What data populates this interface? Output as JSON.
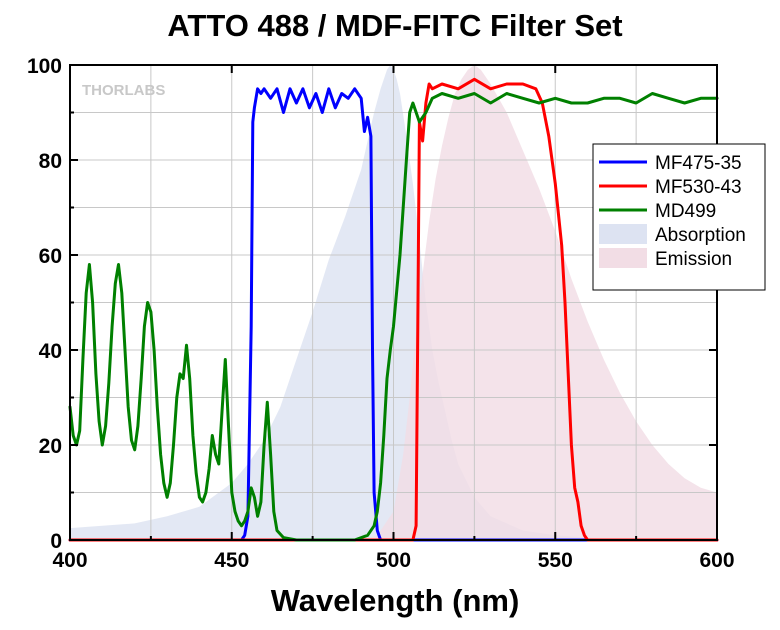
{
  "chart_data": {
    "type": "line",
    "title": "ATTO 488 / MDF-FITC Filter Set",
    "xlabel": "Wavelength (nm)",
    "ylabel": "",
    "xlim": [
      400,
      600
    ],
    "ylim": [
      0,
      100
    ],
    "x_ticks": [
      400,
      450,
      500,
      550,
      600
    ],
    "y_ticks": [
      0,
      20,
      40,
      60,
      80,
      100
    ],
    "grid": true,
    "legend_position": "right",
    "watermark": "THORLABS",
    "series": [
      {
        "name": "MF475-35",
        "color": "#0000ff",
        "style": "line",
        "x": [
          400,
          453,
          454,
          455,
          456,
          456.5,
          457,
          458,
          459,
          460,
          462,
          464,
          466,
          468,
          470,
          472,
          474,
          476,
          478,
          480,
          482,
          484,
          486,
          488,
          490,
          491,
          492,
          493,
          493.5,
          494,
          495,
          496,
          600
        ],
        "y": [
          0,
          0,
          1,
          5,
          45,
          88,
          91,
          95,
          94,
          95,
          93,
          95,
          90,
          95,
          92,
          95,
          91,
          94,
          90,
          95,
          91,
          94,
          93,
          95,
          93,
          86,
          89,
          85,
          40,
          10,
          2,
          0,
          0
        ]
      },
      {
        "name": "MF530-43",
        "color": "#ff0000",
        "style": "line",
        "x": [
          400,
          506,
          507,
          507.5,
          508,
          509,
          510,
          511,
          512,
          515,
          520,
          525,
          530,
          535,
          540,
          544,
          546,
          548,
          550,
          552,
          553,
          554,
          555,
          556,
          557,
          558,
          559,
          560,
          600
        ],
        "y": [
          0,
          0,
          3,
          45,
          88,
          84,
          92,
          96,
          95,
          96,
          95,
          97,
          95,
          96,
          96,
          95,
          92,
          85,
          75,
          62,
          50,
          35,
          20,
          11,
          8,
          3,
          1,
          0,
          0
        ]
      },
      {
        "name": "MD499",
        "color": "#008000",
        "style": "line",
        "x": [
          400,
          401,
          402,
          403,
          404,
          405,
          406,
          407,
          408,
          409,
          410,
          411,
          412,
          413,
          414,
          415,
          416,
          417,
          418,
          419,
          420,
          421,
          422,
          423,
          424,
          425,
          426,
          427,
          428,
          429,
          430,
          431,
          432,
          433,
          434,
          435,
          436,
          437,
          438,
          439,
          440,
          441,
          442,
          443,
          444,
          445,
          446,
          447,
          448,
          449,
          450,
          451,
          452,
          453,
          454,
          455,
          456,
          457,
          458,
          459,
          460,
          461,
          462,
          463,
          464,
          466,
          470,
          475,
          480,
          485,
          488,
          490,
          492,
          494,
          495,
          496,
          497,
          498,
          499,
          500,
          502,
          504,
          505,
          506,
          508,
          510,
          512,
          515,
          520,
          525,
          530,
          535,
          540,
          545,
          550,
          555,
          560,
          565,
          570,
          575,
          580,
          585,
          590,
          595,
          600
        ],
        "y": [
          28,
          22,
          20,
          23,
          38,
          52,
          58,
          50,
          35,
          25,
          20,
          24,
          33,
          45,
          54,
          58,
          52,
          40,
          28,
          21,
          19,
          24,
          34,
          45,
          50,
          48,
          40,
          28,
          18,
          12,
          9,
          12,
          20,
          30,
          35,
          34,
          41,
          34,
          22,
          14,
          9,
          8,
          10,
          15,
          22,
          18,
          16,
          27,
          38,
          24,
          10,
          6,
          4,
          3,
          4,
          6,
          11,
          9,
          5,
          8,
          20,
          29,
          18,
          6,
          2,
          0.5,
          0,
          0,
          0,
          0,
          0,
          0.5,
          1,
          3,
          6,
          12,
          22,
          34,
          40,
          45,
          60,
          80,
          90,
          92,
          88,
          90,
          93,
          94,
          93,
          94,
          92,
          94,
          93,
          92,
          93,
          92,
          92,
          93,
          93,
          92,
          94,
          93,
          92,
          93,
          93
        ]
      },
      {
        "name": "Absorption",
        "color": "#dde3f2",
        "style": "fill",
        "x": [
          400,
          410,
          420,
          430,
          440,
          450,
          455,
          460,
          465,
          470,
          475,
          480,
          485,
          490,
          492,
          494,
          496,
          498,
          499,
          500,
          501,
          502,
          504,
          506,
          508,
          510,
          512,
          514,
          516,
          518,
          520,
          525,
          530,
          540,
          550,
          560,
          570,
          600
        ],
        "y": [
          2.5,
          3,
          3.5,
          5,
          7,
          12,
          16,
          21,
          28,
          38,
          48,
          59,
          68,
          78,
          84,
          90,
          95,
          99,
          100,
          99,
          97,
          94,
          85,
          75,
          63,
          50,
          40,
          33,
          27,
          21,
          16,
          9,
          5,
          2,
          1,
          0.5,
          0,
          0
        ]
      },
      {
        "name": "Emission",
        "color": "#f2dde5",
        "style": "fill",
        "x": [
          400,
          490,
          495,
          500,
          503,
          505,
          507,
          509,
          511,
          513,
          515,
          517,
          519,
          521,
          523,
          525,
          527,
          530,
          535,
          540,
          545,
          550,
          555,
          560,
          565,
          570,
          575,
          580,
          585,
          590,
          595,
          600
        ],
        "y": [
          0,
          0,
          1,
          6,
          18,
          30,
          44,
          56,
          67,
          76,
          83,
          89,
          94,
          97,
          99,
          100,
          99,
          96,
          90,
          82,
          74,
          65,
          55,
          46,
          38,
          31,
          25,
          20,
          16,
          13,
          11,
          10
        ]
      }
    ]
  }
}
